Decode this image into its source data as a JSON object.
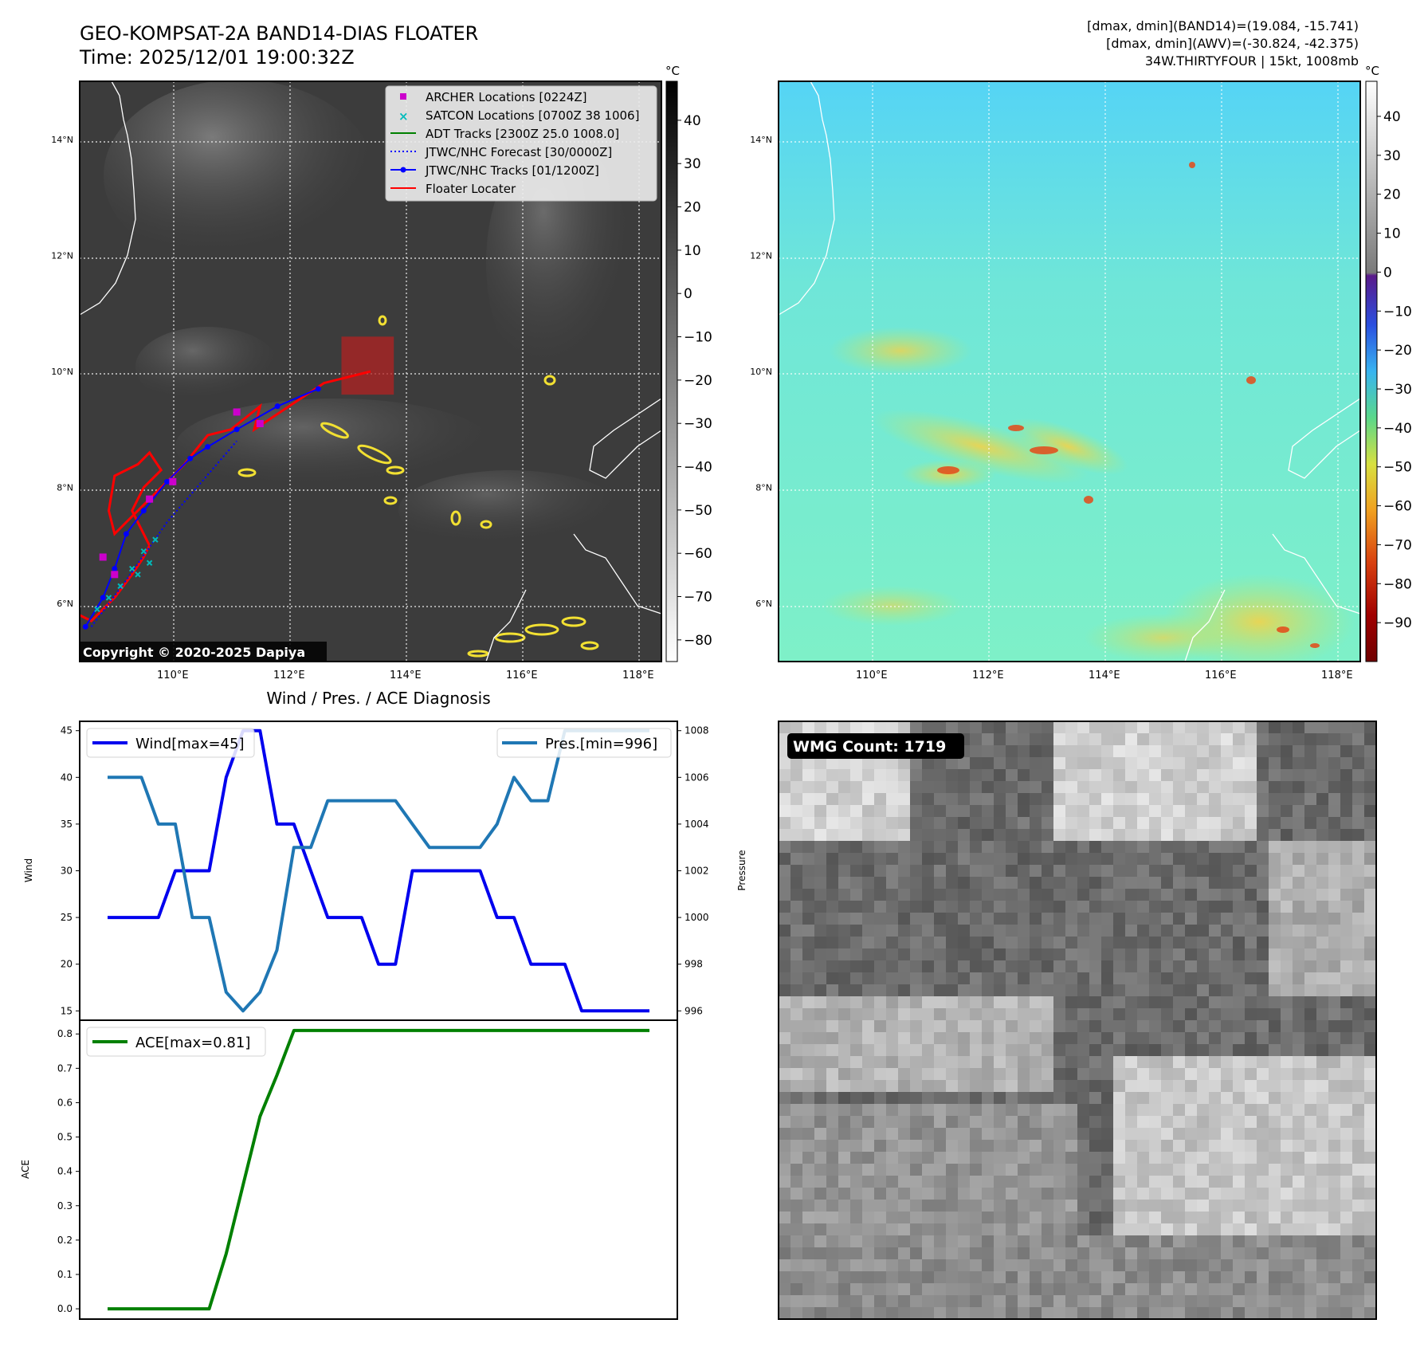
{
  "header": {
    "title_line1": "GEO-KOMPSAT-2A BAND14-DIAS FLOATER",
    "title_line2": "Time: 2025/12/01 19:00:32Z",
    "info_line1": "[dmax, dmin](BAND14)=(19.084, -15.741)",
    "info_line2": "[dmax, dmin](AWV)=(-30.824, -42.375)",
    "info_line3": "34W.THIRTYFOUR | 15kt, 1008mb"
  },
  "copyright": "Copyright © 2020-2025 Dapiya",
  "map": {
    "lon_ticks": [
      "110°E",
      "112°E",
      "114°E",
      "116°E",
      "118°E"
    ],
    "lat_ticks": [
      "6°N",
      "8°N",
      "10°N",
      "12°N",
      "14°N"
    ],
    "lon_range": [
      108.4,
      118.4
    ],
    "lat_range": [
      5.0,
      15.0
    ],
    "colorbar_unit": "°C",
    "gray_ticks": [
      "40",
      "30",
      "20",
      "10",
      "0",
      "−10",
      "−20",
      "−30",
      "−40",
      "−50",
      "−60",
      "−70",
      "−80"
    ],
    "color_ticks": [
      "40",
      "30",
      "20",
      "10",
      "0",
      "−10",
      "−20",
      "−30",
      "−40",
      "−50",
      "−60",
      "−70",
      "−80",
      "−90"
    ],
    "legend": [
      {
        "label": "ARCHER Locations [0224Z]",
        "color": "#cc00cc",
        "kind": "square"
      },
      {
        "label": "SATCON Locations [0700Z 38 1006]",
        "color": "#00bbbb",
        "kind": "x"
      },
      {
        "label": "ADT Tracks [2300Z 25.0 1008.0]",
        "color": "#008000",
        "kind": "line"
      },
      {
        "label": "JTWC/NHC Forecast [30/0000Z]",
        "color": "#0000ff",
        "kind": "dotted"
      },
      {
        "label": "JTWC/NHC Tracks [01/1200Z]",
        "color": "#0000ff",
        "kind": "line-dot"
      },
      {
        "label": "Floater Locater",
        "color": "#ff0000",
        "kind": "line"
      }
    ],
    "jtwc_track": [
      [
        108.5,
        5.6
      ],
      [
        108.8,
        6.1
      ],
      [
        109.0,
        6.6
      ],
      [
        109.2,
        7.2
      ],
      [
        109.5,
        7.6
      ],
      [
        109.9,
        8.1
      ],
      [
        110.3,
        8.5
      ],
      [
        110.6,
        8.7
      ],
      [
        111.1,
        9.0
      ],
      [
        111.8,
        9.4
      ],
      [
        112.5,
        9.7
      ]
    ],
    "jtwc_forecast": [
      [
        108.6,
        5.6
      ],
      [
        109.2,
        6.4
      ],
      [
        109.9,
        7.4
      ],
      [
        110.5,
        8.1
      ],
      [
        111.1,
        8.8
      ]
    ],
    "archer_points": [
      [
        108.8,
        6.8
      ],
      [
        109.0,
        6.5
      ],
      [
        109.6,
        7.8
      ],
      [
        110.0,
        8.1
      ],
      [
        111.1,
        9.3
      ],
      [
        111.5,
        9.1
      ]
    ],
    "satcon_points": [
      [
        108.7,
        5.9
      ],
      [
        108.9,
        6.1
      ],
      [
        109.1,
        6.3
      ],
      [
        109.3,
        6.6
      ],
      [
        109.5,
        6.9
      ],
      [
        109.7,
        7.1
      ],
      [
        109.4,
        6.5
      ],
      [
        109.6,
        6.7
      ]
    ],
    "floater_track": [
      [
        108.4,
        5.8
      ],
      [
        108.6,
        5.7
      ],
      [
        109.0,
        6.1
      ],
      [
        109.3,
        6.5
      ],
      [
        109.5,
        6.8
      ],
      [
        109.6,
        7.0
      ],
      [
        109.4,
        7.4
      ],
      [
        109.3,
        7.6
      ],
      [
        109.5,
        8.0
      ],
      [
        109.8,
        8.3
      ],
      [
        109.6,
        8.6
      ],
      [
        109.4,
        8.4
      ],
      [
        109.0,
        8.2
      ],
      [
        108.9,
        7.6
      ],
      [
        109.0,
        7.2
      ],
      [
        109.9,
        8.1
      ],
      [
        110.2,
        8.4
      ],
      [
        110.6,
        8.9
      ],
      [
        111.0,
        9.0
      ],
      [
        111.5,
        9.4
      ],
      [
        111.4,
        9.0
      ],
      [
        111.7,
        9.2
      ],
      [
        112.3,
        9.6
      ],
      [
        112.6,
        9.8
      ],
      [
        113.4,
        10.0
      ]
    ],
    "floater_box": {
      "lon": [
        112.9,
        113.8
      ],
      "lat": [
        9.6,
        10.6
      ],
      "color": "#b22222"
    }
  },
  "chart_data": [
    {
      "type": "line",
      "title": "Wind / Pres. / ACE Diagnosis",
      "ylabel": "Wind",
      "ylabel_right": "Pressure",
      "ylim": [
        14,
        46
      ],
      "ylim_right": [
        995.6,
        1008.4
      ],
      "yticks": [
        15,
        20,
        25,
        30,
        35,
        40,
        45
      ],
      "yticks_right": [
        996,
        998,
        1000,
        1002,
        1004,
        1006,
        1008
      ],
      "x": [
        0,
        1,
        2,
        3,
        4,
        5,
        6,
        7,
        8,
        9,
        10,
        11,
        12,
        13,
        14,
        15,
        16,
        17,
        18,
        19,
        20,
        21,
        22,
        23,
        24,
        25,
        26,
        27,
        28,
        29,
        30,
        31,
        32
      ],
      "series": [
        {
          "name": "Wind[max=45]",
          "axis": "left",
          "color": "#0000ee",
          "values": [
            25,
            25,
            25,
            25,
            30,
            30,
            30,
            40,
            45,
            45,
            35,
            35,
            30,
            25,
            25,
            25,
            20,
            20,
            30,
            30,
            30,
            30,
            30,
            25,
            25,
            20,
            20,
            20,
            15,
            15,
            15,
            15,
            15
          ]
        },
        {
          "name": "Pres.[min=996]",
          "axis": "right",
          "color": "#1f77b4",
          "values": [
            1006,
            1006,
            1006,
            1004,
            1004,
            1000,
            1000,
            996.8,
            996,
            996.8,
            998.6,
            1003,
            1003,
            1005,
            1005,
            1005,
            1005,
            1005,
            1004,
            1003,
            1003,
            1003,
            1003,
            1004,
            1006,
            1005,
            1005,
            1008,
            1008,
            1008,
            1008,
            1008,
            1008
          ]
        }
      ]
    },
    {
      "type": "line",
      "ylabel": "ACE",
      "ylim": [
        -0.03,
        0.84
      ],
      "yticks": [
        0.0,
        0.1,
        0.2,
        0.3,
        0.4,
        0.5,
        0.6,
        0.7,
        0.8
      ],
      "x": [
        0,
        1,
        2,
        3,
        4,
        5,
        6,
        7,
        8,
        9,
        10,
        11,
        12,
        13,
        14,
        15,
        16,
        17,
        18,
        19,
        20,
        21,
        22,
        23,
        24,
        25,
        26,
        27,
        28,
        29,
        30,
        31,
        32
      ],
      "series": [
        {
          "name": "ACE[max=0.81]",
          "color": "#008000",
          "values": [
            0,
            0,
            0,
            0,
            0,
            0,
            0,
            0.16,
            0.36,
            0.56,
            0.68,
            0.81,
            0.81,
            0.81,
            0.81,
            0.81,
            0.81,
            0.81,
            0.81,
            0.81,
            0.81,
            0.81,
            0.81,
            0.81,
            0.81,
            0.81,
            0.81,
            0.81,
            0.81,
            0.81,
            0.81,
            0.81,
            0.81
          ]
        }
      ]
    }
  ],
  "wmg": {
    "label": "WMG Count: 1719"
  }
}
